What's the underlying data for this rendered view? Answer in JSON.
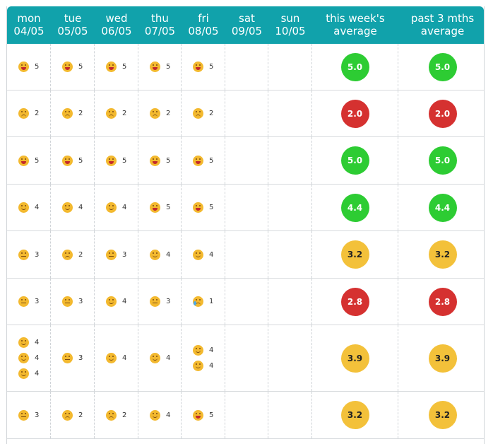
{
  "columns": [
    {
      "day": "mon",
      "date": "04/05"
    },
    {
      "day": "tue",
      "date": "05/05"
    },
    {
      "day": "wed",
      "date": "06/05"
    },
    {
      "day": "thu",
      "date": "07/05"
    },
    {
      "day": "fri",
      "date": "08/05"
    },
    {
      "day": "sat",
      "date": "09/05"
    },
    {
      "day": "sun",
      "date": "10/05"
    }
  ],
  "avg_headers": {
    "week_line1": "this week's",
    "week_line2": "average",
    "past_line1": "past 3 mths",
    "past_line2": "average"
  },
  "colors": {
    "header": "#11a2ab",
    "good": "#2dcc33",
    "bad": "#d53130",
    "mid": "#f3c13a"
  },
  "rows": [
    {
      "days": [
        [
          "5"
        ],
        [
          "5"
        ],
        [
          "5"
        ],
        [
          "5"
        ],
        [
          "5"
        ],
        [],
        []
      ],
      "week_avg": "5.0",
      "past_avg": "5.0",
      "status": "green"
    },
    {
      "days": [
        [
          "2"
        ],
        [
          "2"
        ],
        [
          "2"
        ],
        [
          "2"
        ],
        [
          "2"
        ],
        [],
        []
      ],
      "week_avg": "2.0",
      "past_avg": "2.0",
      "status": "red"
    },
    {
      "days": [
        [
          "5"
        ],
        [
          "5"
        ],
        [
          "5"
        ],
        [
          "5"
        ],
        [
          "5"
        ],
        [],
        []
      ],
      "week_avg": "5.0",
      "past_avg": "5.0",
      "status": "green"
    },
    {
      "days": [
        [
          "4"
        ],
        [
          "4"
        ],
        [
          "4"
        ],
        [
          "5"
        ],
        [
          "5"
        ],
        [],
        []
      ],
      "week_avg": "4.4",
      "past_avg": "4.4",
      "status": "green"
    },
    {
      "days": [
        [
          "3"
        ],
        [
          "2"
        ],
        [
          "3"
        ],
        [
          "4"
        ],
        [
          "4"
        ],
        [],
        []
      ],
      "week_avg": "3.2",
      "past_avg": "3.2",
      "status": "yellow"
    },
    {
      "days": [
        [
          "3"
        ],
        [
          "3"
        ],
        [
          "4"
        ],
        [
          "3"
        ],
        [
          "1"
        ],
        [],
        []
      ],
      "week_avg": "2.8",
      "past_avg": "2.8",
      "status": "red"
    },
    {
      "days": [
        [
          "4",
          "4",
          "4"
        ],
        [
          "3"
        ],
        [
          "4"
        ],
        [
          "4"
        ],
        [
          "4",
          "4"
        ],
        [],
        []
      ],
      "week_avg": "3.9",
      "past_avg": "3.9",
      "status": "yellow"
    },
    {
      "days": [
        [
          "3"
        ],
        [
          "2"
        ],
        [
          "2"
        ],
        [
          "4"
        ],
        [
          "5"
        ],
        [],
        []
      ],
      "week_avg": "3.2",
      "past_avg": "3.2",
      "status": "yellow"
    }
  ]
}
